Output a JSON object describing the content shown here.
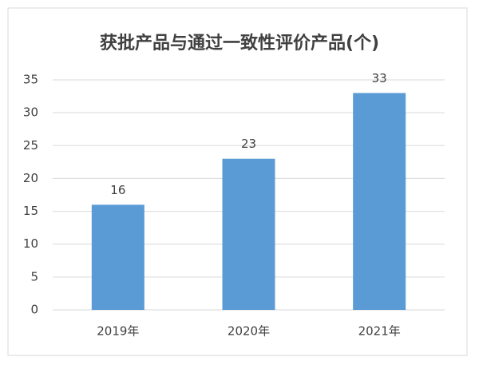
{
  "chart_data": {
    "type": "bar",
    "title": "获批产品与通过一致性评价产品(个)",
    "categories": [
      "2019年",
      "2020年",
      "2021年"
    ],
    "values": [
      16,
      23,
      33
    ],
    "color": "#5b9bd5",
    "ylim": [
      0,
      35
    ],
    "yticks": [
      0,
      5,
      10,
      15,
      20,
      25,
      30,
      35
    ],
    "grid": true
  }
}
